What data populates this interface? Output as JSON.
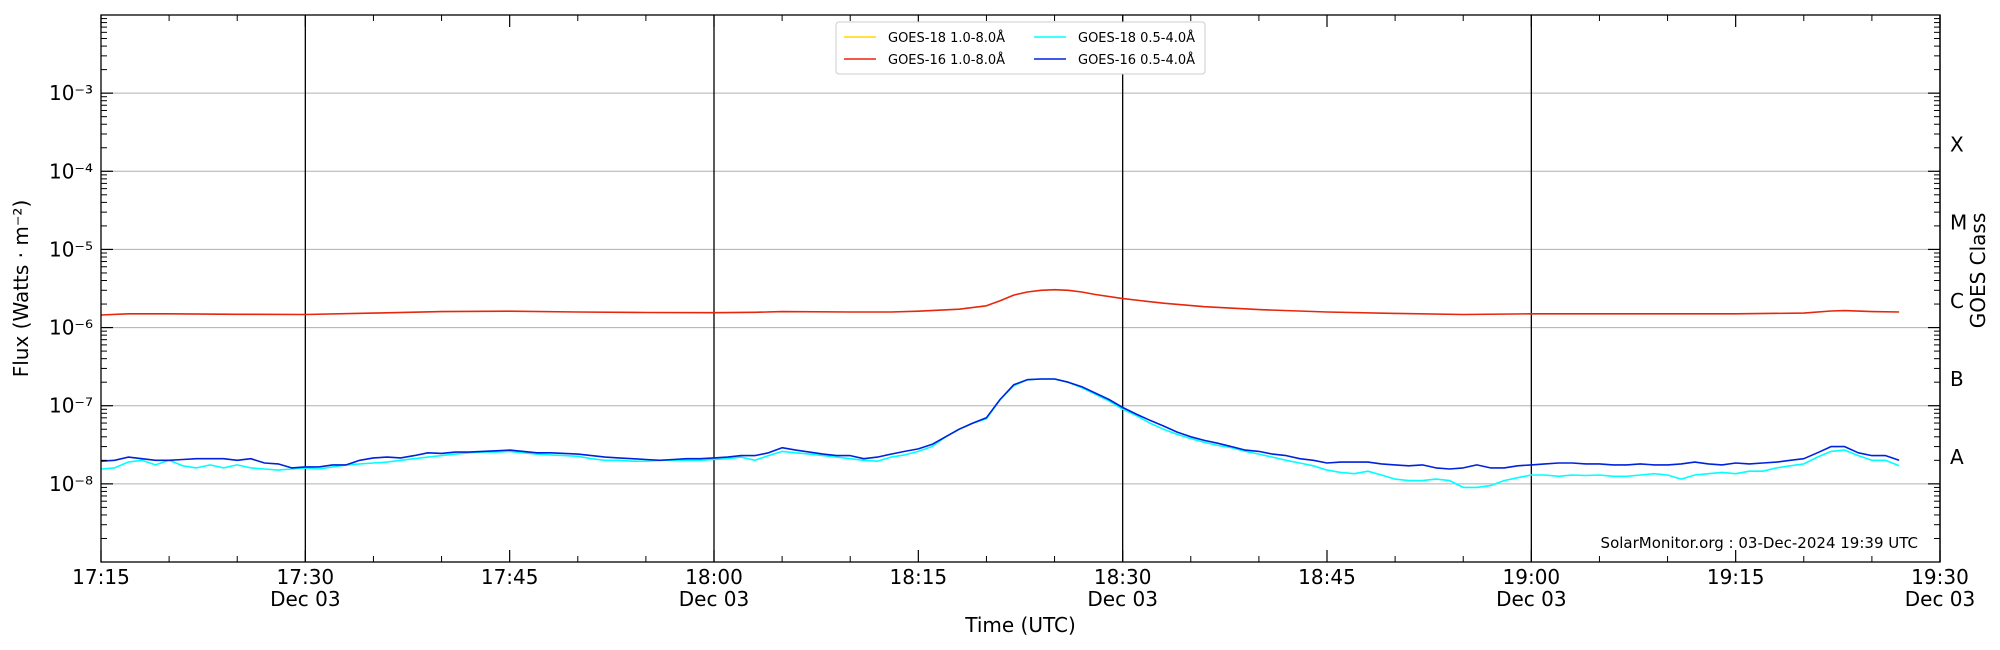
{
  "chart_data": {
    "type": "line",
    "xlabel": "Time (UTC)",
    "ylabel": "Flux (Watts · m⁻²)",
    "right_axis_label": "GOES Class",
    "yscale": "log",
    "ylim": [
      1e-09,
      0.01
    ],
    "xlim": [
      "17:15",
      "19:30"
    ],
    "grid": "horizontal at decades",
    "legend_placement": "top-center",
    "watermark": "SolarMonitor.org : 03-Dec-2024 19:39 UTC",
    "x_ticks": [
      {
        "time": "17:15",
        "label": "17:15",
        "date": ""
      },
      {
        "time": "17:30",
        "label": "17:30",
        "date": "Dec 03"
      },
      {
        "time": "17:45",
        "label": "17:45",
        "date": ""
      },
      {
        "time": "18:00",
        "label": "18:00",
        "date": "Dec 03"
      },
      {
        "time": "18:15",
        "label": "18:15",
        "date": ""
      },
      {
        "time": "18:30",
        "label": "18:30",
        "date": "Dec 03"
      },
      {
        "time": "18:45",
        "label": "18:45",
        "date": ""
      },
      {
        "time": "19:00",
        "label": "19:00",
        "date": "Dec 03"
      },
      {
        "time": "19:15",
        "label": "19:15",
        "date": ""
      },
      {
        "time": "19:30",
        "label": "19:30",
        "date": "Dec 03"
      }
    ],
    "vertical_lines": [
      "17:30",
      "18:00",
      "18:30",
      "19:00",
      "19:30"
    ],
    "y_ticks": [
      {
        "value": 1e-08,
        "label": "10⁻⁸"
      },
      {
        "value": 1e-07,
        "label": "10⁻⁷"
      },
      {
        "value": 1e-06,
        "label": "10⁻⁶"
      },
      {
        "value": 1e-05,
        "label": "10⁻⁵"
      },
      {
        "value": 0.0001,
        "label": "10⁻⁴"
      },
      {
        "value": 0.001,
        "label": "10⁻³"
      }
    ],
    "goes_classes": [
      {
        "label": "A",
        "value": 2.2e-08
      },
      {
        "label": "B",
        "value": 2.2e-07
      },
      {
        "label": "C",
        "value": 2.2e-06
      },
      {
        "label": "M",
        "value": 2.2e-05
      },
      {
        "label": "X",
        "value": 0.00022
      }
    ],
    "series": [
      {
        "name": "GOES-18 1.0-8.0Å",
        "color": "#ffd700",
        "x": [],
        "y": []
      },
      {
        "name": "GOES-16 1.0-8.0Å",
        "color": "#e8260c",
        "x": [
          "17:15",
          "17:17",
          "17:20",
          "17:25",
          "17:30",
          "17:35",
          "17:40",
          "17:45",
          "17:50",
          "17:55",
          "18:00",
          "18:03",
          "18:05",
          "18:10",
          "18:13",
          "18:15",
          "18:18",
          "18:20",
          "18:21",
          "18:22",
          "18:23",
          "18:24",
          "18:25",
          "18:26",
          "18:27",
          "18:28",
          "18:30",
          "18:33",
          "18:36",
          "18:40",
          "18:45",
          "18:50",
          "18:55",
          "19:00",
          "19:05",
          "19:10",
          "19:15",
          "19:20",
          "19:22",
          "19:23",
          "19:25",
          "19:27"
        ],
        "y": [
          1.45e-06,
          1.5e-06,
          1.5e-06,
          1.48e-06,
          1.47e-06,
          1.53e-06,
          1.6e-06,
          1.62e-06,
          1.58e-06,
          1.56e-06,
          1.55e-06,
          1.57e-06,
          1.6e-06,
          1.58e-06,
          1.58e-06,
          1.62e-06,
          1.72e-06,
          1.9e-06,
          2.2e-06,
          2.6e-06,
          2.85e-06,
          3e-06,
          3.05e-06,
          3e-06,
          2.85e-06,
          2.65e-06,
          2.35e-06,
          2.05e-06,
          1.85e-06,
          1.7e-06,
          1.58e-06,
          1.52e-06,
          1.47e-06,
          1.5e-06,
          1.5e-06,
          1.5e-06,
          1.5e-06,
          1.53e-06,
          1.63e-06,
          1.65e-06,
          1.6e-06,
          1.58e-06
        ]
      },
      {
        "name": "GOES-18 0.5-4.0Å",
        "color": "#00ffff",
        "x": [
          "17:15",
          "17:16",
          "17:17",
          "17:18",
          "17:19",
          "17:20",
          "17:21",
          "17:22",
          "17:23",
          "17:24",
          "17:25",
          "17:26",
          "17:27",
          "17:28",
          "17:29",
          "17:30",
          "17:31",
          "17:32",
          "17:33",
          "17:34",
          "17:35",
          "17:36",
          "17:37",
          "17:38",
          "17:39",
          "17:40",
          "17:41",
          "17:42",
          "17:43",
          "17:44",
          "17:45",
          "17:46",
          "17:47",
          "17:48",
          "17:49",
          "17:50",
          "17:51",
          "17:52",
          "17:53",
          "17:54",
          "17:55",
          "17:56",
          "17:57",
          "17:58",
          "17:59",
          "18:00",
          "18:01",
          "18:02",
          "18:03",
          "18:04",
          "18:05",
          "18:06",
          "18:07",
          "18:08",
          "18:09",
          "18:10",
          "18:11",
          "18:12",
          "18:13",
          "18:14",
          "18:15",
          "18:16",
          "18:17",
          "18:18",
          "18:19",
          "18:20",
          "18:21",
          "18:22",
          "18:23",
          "18:24",
          "18:25",
          "18:26",
          "18:27",
          "18:28",
          "18:29",
          "18:30",
          "18:31",
          "18:32",
          "18:33",
          "18:34",
          "18:35",
          "18:36",
          "18:37",
          "18:38",
          "18:39",
          "18:40",
          "18:41",
          "18:42",
          "18:43",
          "18:44",
          "18:45",
          "18:46",
          "18:47",
          "18:48",
          "18:49",
          "18:50",
          "18:51",
          "18:52",
          "18:53",
          "18:54",
          "18:55",
          "18:56",
          "18:57",
          "18:58",
          "18:59",
          "19:00",
          "19:01",
          "19:02",
          "19:03",
          "19:04",
          "19:05",
          "19:06",
          "19:07",
          "19:08",
          "19:09",
          "19:10",
          "19:11",
          "19:12",
          "19:13",
          "19:14",
          "19:15",
          "19:16",
          "19:17",
          "19:18",
          "19:19",
          "19:20",
          "19:21",
          "19:22",
          "19:23",
          "19:24",
          "19:25",
          "19:26",
          "19:27"
        ],
        "y": [
          1.55e-08,
          1.6e-08,
          1.9e-08,
          2e-08,
          1.75e-08,
          2e-08,
          1.7e-08,
          1.6e-08,
          1.75e-08,
          1.6e-08,
          1.75e-08,
          1.6e-08,
          1.55e-08,
          1.5e-08,
          1.55e-08,
          1.6e-08,
          1.55e-08,
          1.65e-08,
          1.75e-08,
          1.8e-08,
          1.85e-08,
          1.9e-08,
          2e-08,
          2.1e-08,
          2.2e-08,
          2.3e-08,
          2.4e-08,
          2.5e-08,
          2.55e-08,
          2.55e-08,
          2.6e-08,
          2.5e-08,
          2.4e-08,
          2.35e-08,
          2.3e-08,
          2.25e-08,
          2.1e-08,
          2e-08,
          2e-08,
          1.95e-08,
          1.95e-08,
          2e-08,
          2e-08,
          2e-08,
          2e-08,
          2.05e-08,
          2.1e-08,
          2.2e-08,
          2e-08,
          2.3e-08,
          2.6e-08,
          2.5e-08,
          2.4e-08,
          2.3e-08,
          2.2e-08,
          2.1e-08,
          2e-08,
          1.95e-08,
          2.2e-08,
          2.35e-08,
          2.6e-08,
          3e-08,
          4e-08,
          5e-08,
          6e-08,
          6.8e-08,
          1.2e-07,
          1.8e-07,
          2.15e-07,
          2.2e-07,
          2.2e-07,
          2e-07,
          1.7e-07,
          1.4e-07,
          1.15e-07,
          9e-08,
          7.5e-08,
          6e-08,
          5e-08,
          4.3e-08,
          3.8e-08,
          3.4e-08,
          3.1e-08,
          2.9e-08,
          2.6e-08,
          2.4e-08,
          2.2e-08,
          2e-08,
          1.85e-08,
          1.7e-08,
          1.5e-08,
          1.4e-08,
          1.35e-08,
          1.45e-08,
          1.3e-08,
          1.15e-08,
          1.1e-08,
          1.1e-08,
          1.15e-08,
          1.1e-08,
          9e-09,
          9e-09,
          9.5e-09,
          1.1e-08,
          1.2e-08,
          1.3e-08,
          1.3e-08,
          1.25e-08,
          1.3e-08,
          1.28e-08,
          1.3e-08,
          1.25e-08,
          1.25e-08,
          1.3e-08,
          1.35e-08,
          1.3e-08,
          1.15e-08,
          1.3e-08,
          1.35e-08,
          1.4e-08,
          1.35e-08,
          1.45e-08,
          1.45e-08,
          1.6e-08,
          1.7e-08,
          1.8e-08,
          2.2e-08,
          2.6e-08,
          2.7e-08,
          2.3e-08,
          2e-08,
          2e-08,
          1.7e-08
        ]
      },
      {
        "name": "GOES-16 0.5-4.0Å",
        "color": "#0022dd",
        "x": [
          "17:15",
          "17:16",
          "17:17",
          "17:18",
          "17:19",
          "17:20",
          "17:21",
          "17:22",
          "17:23",
          "17:24",
          "17:25",
          "17:26",
          "17:27",
          "17:28",
          "17:29",
          "17:30",
          "17:31",
          "17:32",
          "17:33",
          "17:34",
          "17:35",
          "17:36",
          "17:37",
          "17:38",
          "17:39",
          "17:40",
          "17:41",
          "17:42",
          "17:43",
          "17:44",
          "17:45",
          "17:46",
          "17:47",
          "17:48",
          "17:49",
          "17:50",
          "17:51",
          "17:52",
          "17:53",
          "17:54",
          "17:55",
          "17:56",
          "17:57",
          "17:58",
          "17:59",
          "18:00",
          "18:01",
          "18:02",
          "18:03",
          "18:04",
          "18:05",
          "18:06",
          "18:07",
          "18:08",
          "18:09",
          "18:10",
          "18:11",
          "18:12",
          "18:13",
          "18:14",
          "18:15",
          "18:16",
          "18:17",
          "18:18",
          "18:19",
          "18:20",
          "18:21",
          "18:22",
          "18:23",
          "18:24",
          "18:25",
          "18:26",
          "18:27",
          "18:28",
          "18:29",
          "18:30",
          "18:31",
          "18:32",
          "18:33",
          "18:34",
          "18:35",
          "18:36",
          "18:37",
          "18:38",
          "18:39",
          "18:40",
          "18:41",
          "18:42",
          "18:43",
          "18:44",
          "18:45",
          "18:46",
          "18:47",
          "18:48",
          "18:49",
          "18:50",
          "18:51",
          "18:52",
          "18:53",
          "18:54",
          "18:55",
          "18:56",
          "18:57",
          "18:58",
          "18:59",
          "19:00",
          "19:01",
          "19:02",
          "19:03",
          "19:04",
          "19:05",
          "19:06",
          "19:07",
          "19:08",
          "19:09",
          "19:10",
          "19:11",
          "19:12",
          "19:13",
          "19:14",
          "19:15",
          "19:16",
          "19:17",
          "19:18",
          "19:19",
          "19:20",
          "19:21",
          "19:22",
          "19:23",
          "19:24",
          "19:25",
          "19:26",
          "19:27"
        ],
        "y": [
          1.95e-08,
          2e-08,
          2.2e-08,
          2.1e-08,
          2e-08,
          2e-08,
          2.05e-08,
          2.1e-08,
          2.1e-08,
          2.1e-08,
          2e-08,
          2.1e-08,
          1.85e-08,
          1.8e-08,
          1.6e-08,
          1.65e-08,
          1.65e-08,
          1.75e-08,
          1.75e-08,
          2e-08,
          2.15e-08,
          2.2e-08,
          2.15e-08,
          2.3e-08,
          2.5e-08,
          2.45e-08,
          2.55e-08,
          2.55e-08,
          2.6e-08,
          2.65e-08,
          2.7e-08,
          2.6e-08,
          2.5e-08,
          2.5e-08,
          2.45e-08,
          2.4e-08,
          2.3e-08,
          2.2e-08,
          2.15e-08,
          2.1e-08,
          2.05e-08,
          2e-08,
          2.05e-08,
          2.1e-08,
          2.1e-08,
          2.15e-08,
          2.2e-08,
          2.3e-08,
          2.3e-08,
          2.5e-08,
          2.9e-08,
          2.7e-08,
          2.55e-08,
          2.4e-08,
          2.3e-08,
          2.3e-08,
          2.1e-08,
          2.2e-08,
          2.4e-08,
          2.6e-08,
          2.8e-08,
          3.2e-08,
          4e-08,
          5e-08,
          6e-08,
          7e-08,
          1.2e-07,
          1.85e-07,
          2.15e-07,
          2.2e-07,
          2.2e-07,
          2e-07,
          1.75e-07,
          1.45e-07,
          1.2e-07,
          9.5e-08,
          7.8e-08,
          6.5e-08,
          5.5e-08,
          4.6e-08,
          4e-08,
          3.6e-08,
          3.3e-08,
          3e-08,
          2.7e-08,
          2.6e-08,
          2.4e-08,
          2.3e-08,
          2.1e-08,
          2e-08,
          1.85e-08,
          1.9e-08,
          1.9e-08,
          1.9e-08,
          1.8e-08,
          1.75e-08,
          1.7e-08,
          1.75e-08,
          1.6e-08,
          1.55e-08,
          1.6e-08,
          1.75e-08,
          1.6e-08,
          1.6e-08,
          1.7e-08,
          1.75e-08,
          1.8e-08,
          1.85e-08,
          1.85e-08,
          1.8e-08,
          1.8e-08,
          1.75e-08,
          1.75e-08,
          1.8e-08,
          1.75e-08,
          1.75e-08,
          1.8e-08,
          1.9e-08,
          1.8e-08,
          1.75e-08,
          1.85e-08,
          1.8e-08,
          1.85e-08,
          1.9e-08,
          2e-08,
          2.1e-08,
          2.5e-08,
          3e-08,
          3e-08,
          2.5e-08,
          2.3e-08,
          2.3e-08,
          2e-08
        ]
      }
    ],
    "legend_layout": [
      [
        "GOES-18 1.0-8.0Å",
        "GOES-18 0.5-4.0Å"
      ],
      [
        "GOES-16 1.0-8.0Å",
        "GOES-16 0.5-4.0Å"
      ]
    ]
  }
}
